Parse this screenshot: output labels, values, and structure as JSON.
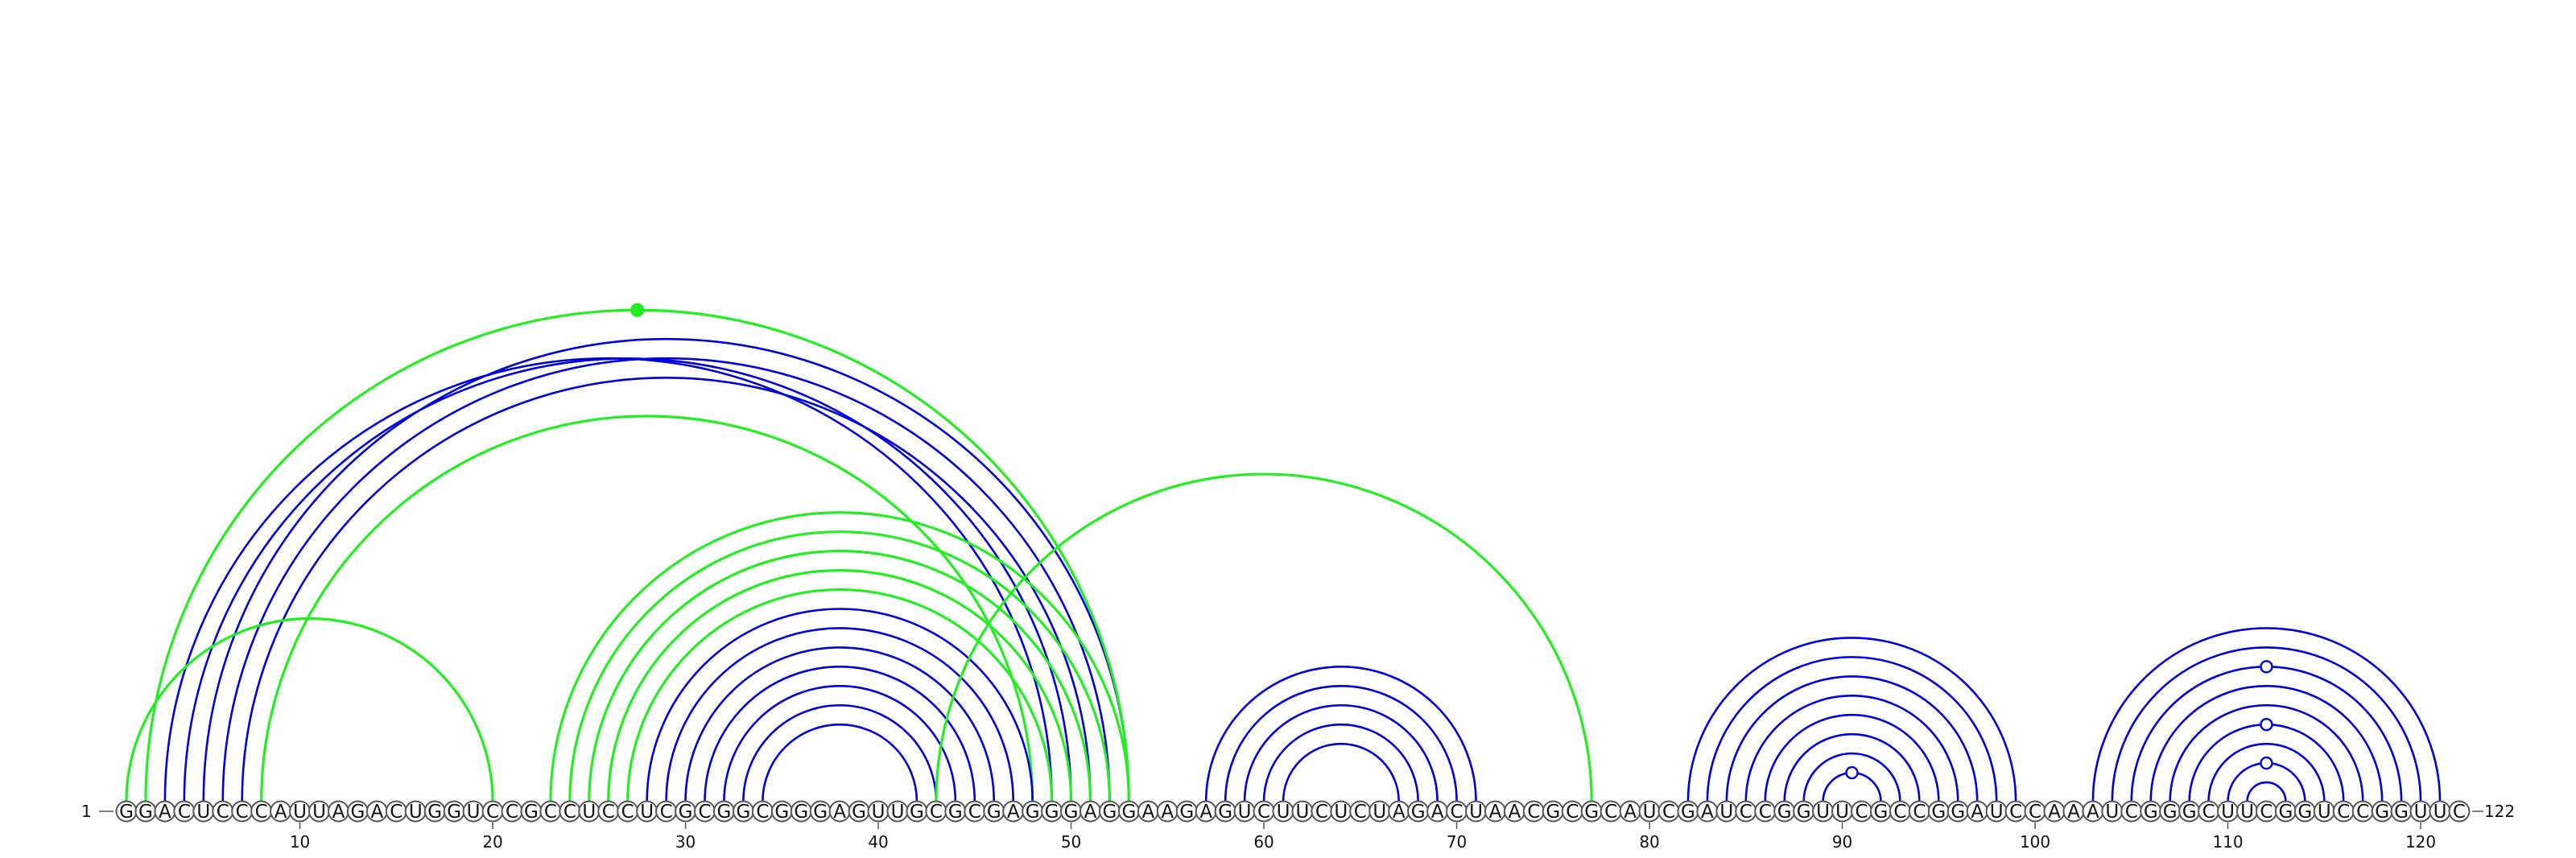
{
  "sequence": "GGACUCCCAUUAGACUGGUCCGCCUCCUCGCGGCGGGAGUUGCGCGAGGGAGGAAGAGUCUUCUCUAGACUAACGCGCAUCGAUCCGGUUCGCCGGAUCCAAAUCGGGCUUCGGUCCGGUUC",
  "start_label": "1",
  "end_label": "122",
  "tick_labels": [
    "10",
    "20",
    "30",
    "40",
    "50",
    "60",
    "70",
    "80",
    "90",
    "100",
    "110",
    "120"
  ],
  "colors": {
    "blue": "#0000dd",
    "green": "#22ee22",
    "node_stroke": "#555555"
  },
  "arc_groups": [
    {
      "name": "blue-long-helix",
      "color": "blue",
      "pairs": [
        [
          5,
          53
        ],
        [
          6,
          52
        ],
        [
          7,
          51
        ],
        [
          4,
          50
        ],
        [
          3,
          49
        ]
      ]
    },
    {
      "name": "green-outer",
      "color": "green",
      "pairs": [
        [
          2,
          53
        ],
        [
          8,
          48
        ],
        [
          1,
          20
        ]
      ]
    },
    {
      "name": "green-helix-23-53",
      "color": "green",
      "pairs": [
        [
          23,
          53
        ],
        [
          24,
          52
        ],
        [
          25,
          51
        ],
        [
          26,
          50
        ],
        [
          27,
          49
        ]
      ]
    },
    {
      "name": "blue-helix-28-48",
      "color": "blue",
      "pairs": [
        [
          28,
          48
        ],
        [
          29,
          47
        ],
        [
          30,
          46
        ],
        [
          31,
          45
        ],
        [
          32,
          44
        ],
        [
          33,
          43
        ],
        [
          34,
          42
        ]
      ]
    },
    {
      "name": "green-pk-43-77",
      "color": "green",
      "pairs": [
        [
          43,
          77
        ]
      ]
    },
    {
      "name": "blue-hairpin-57-71",
      "color": "blue",
      "pairs": [
        [
          57,
          71
        ],
        [
          58,
          70
        ],
        [
          59,
          69
        ],
        [
          60,
          68
        ],
        [
          61,
          67
        ]
      ]
    },
    {
      "name": "blue-hairpin-82-99",
      "color": "blue",
      "pairs": [
        [
          82,
          99
        ],
        [
          83,
          98
        ],
        [
          84,
          97
        ],
        [
          85,
          96
        ],
        [
          86,
          95
        ],
        [
          87,
          94
        ],
        [
          88,
          93
        ],
        [
          89,
          92
        ]
      ]
    },
    {
      "name": "blue-hairpin-103-121",
      "color": "blue",
      "pairs": [
        [
          103,
          121
        ],
        [
          104,
          120
        ],
        [
          105,
          119
        ],
        [
          106,
          118
        ],
        [
          107,
          117
        ],
        [
          108,
          116
        ],
        [
          109,
          115
        ],
        [
          110,
          114
        ],
        [
          111,
          113
        ]
      ]
    }
  ],
  "markers": [
    {
      "type": "filled",
      "color": "green",
      "over": [
        2,
        53
      ]
    },
    {
      "type": "open",
      "color": "blue",
      "over": [
        89,
        92
      ]
    },
    {
      "type": "open",
      "color": "blue",
      "over": [
        105,
        119
      ]
    },
    {
      "type": "open",
      "color": "blue",
      "over": [
        108,
        116
      ]
    },
    {
      "type": "open",
      "color": "blue",
      "over": [
        110,
        114
      ]
    }
  ]
}
